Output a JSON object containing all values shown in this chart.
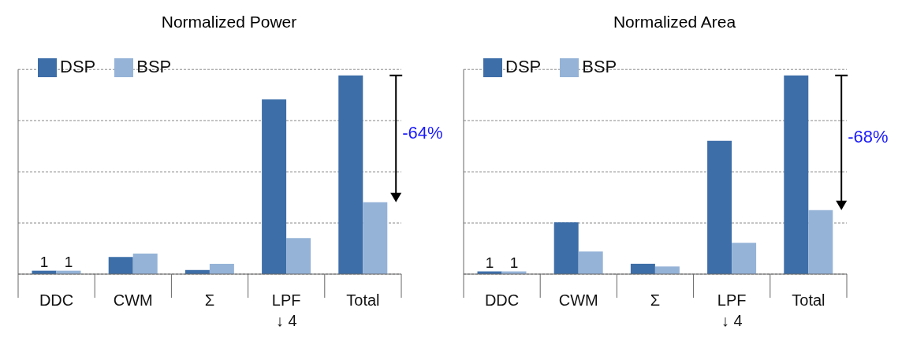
{
  "chart_data": [
    {
      "type": "bar",
      "title": "Normalized Power",
      "categories": [
        "DDC",
        "CWM",
        "Σ",
        "LPF\n↓ 4",
        "Total"
      ],
      "series": [
        {
          "name": "DSP",
          "color": "#3d6ea8",
          "values": [
            1,
            5,
            1.2,
            51,
            58
          ],
          "value_labels": [
            "1",
            null,
            null,
            null,
            null
          ]
        },
        {
          "name": "BSP",
          "color": "#95b3d7",
          "values": [
            1,
            6,
            3,
            10.5,
            21
          ],
          "value_labels": [
            "1",
            null,
            null,
            null,
            null
          ]
        }
      ],
      "annotations": [
        {
          "text": "-64%",
          "x": "Total"
        }
      ],
      "grid": "y",
      "legend": "top left",
      "tick_labels": "x"
    },
    {
      "type": "bar",
      "title": "Normalized Area",
      "categories": [
        "DDC",
        "CWM",
        "Σ",
        "LPF\n↓ 4",
        "Total"
      ],
      "series": [
        {
          "name": "DSP",
          "color": "#3d6ea8",
          "values": [
            1,
            19,
            3.8,
            49,
            73
          ],
          "value_labels": [
            "1",
            null,
            null,
            null,
            null
          ]
        },
        {
          "name": "BSP",
          "color": "#95b3d7",
          "values": [
            1,
            8.3,
            2.8,
            11.5,
            23.5
          ],
          "value_labels": [
            "1",
            null,
            null,
            null,
            null
          ]
        }
      ],
      "annotations": [
        {
          "text": "-68%",
          "x": "Total"
        }
      ],
      "grid": "y",
      "legend": "top left",
      "tick_labels": "x"
    }
  ]
}
